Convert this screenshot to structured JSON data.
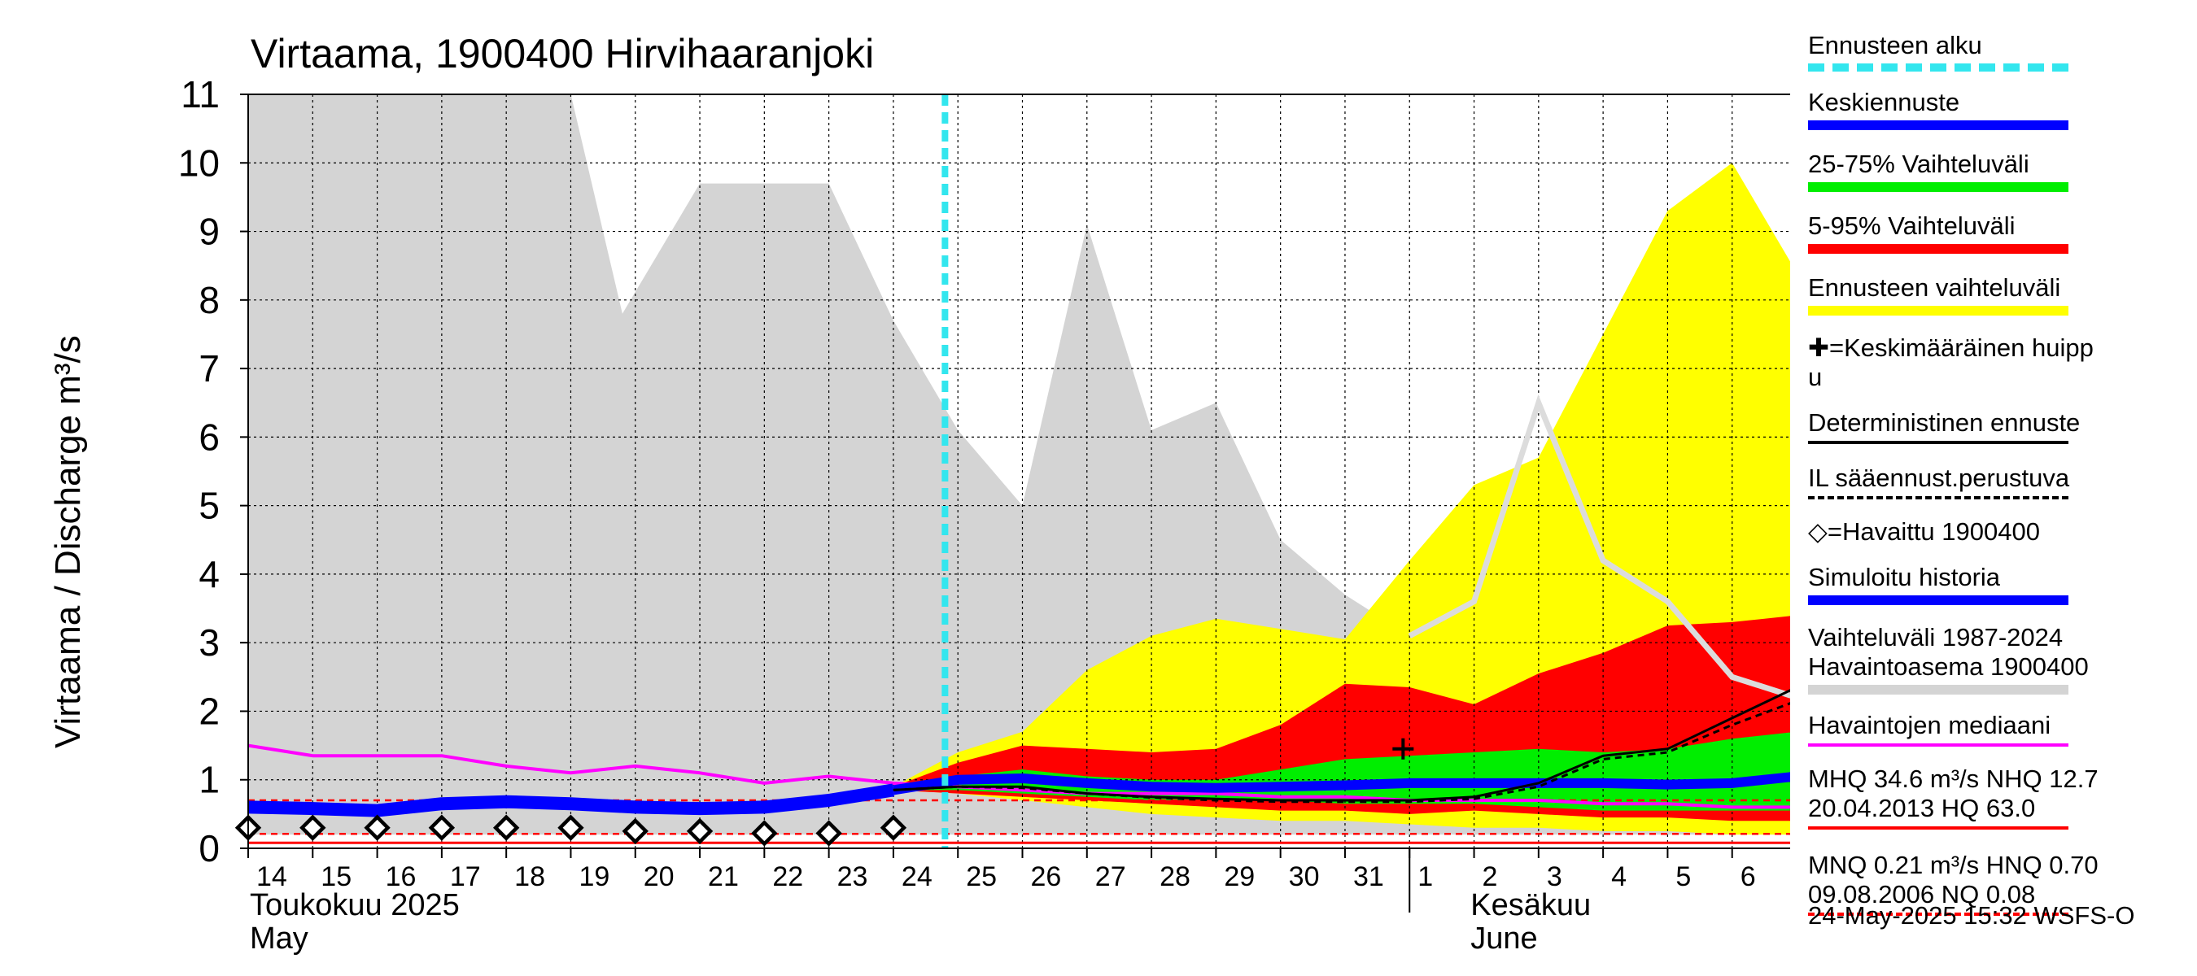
{
  "chart_data": {
    "type": "area",
    "title": "Virtaama, 1900400 Hirvihaaranjoki",
    "ylabel": "Virtaama / Discharge   m³/s",
    "ylim": [
      0,
      11
    ],
    "yticks": [
      0,
      1,
      2,
      3,
      4,
      5,
      6,
      7,
      8,
      9,
      10,
      11
    ],
    "x_start": "2025-05-14",
    "x_end": "2025-06-07",
    "x_tick_labels": [
      "14",
      "15",
      "16",
      "17",
      "18",
      "19",
      "20",
      "21",
      "22",
      "23",
      "24",
      "25",
      "26",
      "27",
      "28",
      "29",
      "30",
      "31",
      "1",
      "2",
      "3",
      "4",
      "5",
      "6"
    ],
    "month_labels": [
      {
        "fi": "Toukokuu  2025",
        "en": "May"
      },
      {
        "fi": "Kesäkuu",
        "en": "June"
      }
    ],
    "forecast_start_day": 10.8,
    "historical_range": {
      "name": "Vaihteluväli 1987-2024 Havaintoasema 1900400",
      "x": [
        0,
        1,
        2,
        3,
        4,
        5,
        5.8,
        7,
        8,
        9,
        10,
        11,
        12,
        13,
        14,
        15,
        16,
        17,
        18,
        19,
        20,
        21,
        22,
        23,
        24
      ],
      "upper": [
        11,
        11,
        11,
        11,
        11,
        11,
        7.8,
        9.7,
        9.7,
        9.7,
        7.7,
        6.1,
        5.0,
        9.1,
        6.1,
        6.5,
        4.5,
        3.7,
        3.1,
        3.5,
        3.3,
        3.0,
        2.8,
        2.6,
        2.3
      ],
      "lower": [
        0.2,
        0.2,
        0.2,
        0.2,
        0.2,
        0.2,
        0.2,
        0.2,
        0.2,
        0.2,
        0.2,
        0.2,
        0.2,
        0.2,
        0.2,
        0.2,
        0.2,
        0.2,
        0.2,
        0.2,
        0.2,
        0.2,
        0.2,
        0.2,
        0.2
      ]
    },
    "max_history_line": {
      "x": [
        18,
        19,
        20,
        21,
        22,
        23,
        24
      ],
      "y": [
        3.1,
        3.6,
        6.5,
        4.2,
        3.6,
        2.5,
        2.2
      ]
    },
    "forecast_range": {
      "name": "Ennusteen vaihteluväli",
      "x": [
        10,
        11,
        12,
        13,
        14,
        15,
        16,
        17,
        18,
        19,
        20,
        21,
        22,
        23,
        24
      ],
      "upper": [
        0.9,
        1.4,
        1.7,
        2.6,
        3.1,
        3.35,
        3.2,
        3.05,
        4.2,
        5.3,
        5.7,
        7.5,
        9.3,
        10.0,
        8.4
      ],
      "lower": [
        0.85,
        0.8,
        0.7,
        0.6,
        0.5,
        0.45,
        0.4,
        0.4,
        0.35,
        0.3,
        0.3,
        0.25,
        0.25,
        0.2,
        0.2
      ]
    },
    "range_5_95": {
      "name": "5-95% Vaihteluväli",
      "x": [
        10,
        11,
        12,
        13,
        14,
        15,
        16,
        17,
        18,
        19,
        20,
        21,
        22,
        23,
        24
      ],
      "upper": [
        0.9,
        1.25,
        1.5,
        1.45,
        1.4,
        1.45,
        1.8,
        2.4,
        2.35,
        2.1,
        2.55,
        2.85,
        3.25,
        3.3,
        3.4
      ],
      "lower": [
        0.85,
        0.8,
        0.75,
        0.7,
        0.65,
        0.6,
        0.55,
        0.55,
        0.5,
        0.55,
        0.5,
        0.45,
        0.45,
        0.4,
        0.4
      ]
    },
    "range_25_75": {
      "name": "25-75% Vaihteluväli",
      "x": [
        10,
        11,
        12,
        13,
        14,
        15,
        16,
        17,
        18,
        19,
        20,
        21,
        22,
        23,
        24
      ],
      "upper": [
        0.88,
        1.05,
        1.15,
        1.05,
        1.0,
        1.0,
        1.15,
        1.3,
        1.35,
        1.4,
        1.45,
        1.4,
        1.45,
        1.6,
        1.7
      ],
      "lower": [
        0.85,
        0.85,
        0.8,
        0.75,
        0.7,
        0.7,
        0.7,
        0.65,
        0.65,
        0.65,
        0.6,
        0.55,
        0.55,
        0.55,
        0.55
      ]
    },
    "series": [
      {
        "name": "Keskiennuste",
        "x": [
          10,
          11,
          12,
          13,
          14,
          15,
          16,
          17,
          18,
          19,
          20,
          21,
          22,
          23,
          24
        ],
        "y": [
          0.85,
          1.0,
          1.02,
          0.95,
          0.9,
          0.88,
          0.9,
          0.92,
          0.95,
          0.95,
          0.95,
          0.95,
          0.93,
          0.95,
          1.05
        ]
      },
      {
        "name": "Simuloitu historia",
        "x": [
          0,
          1,
          2,
          3,
          4,
          5,
          6,
          7,
          8,
          9,
          10
        ],
        "y": [
          0.6,
          0.58,
          0.55,
          0.65,
          0.68,
          0.65,
          0.6,
          0.58,
          0.6,
          0.7,
          0.85
        ]
      },
      {
        "name": "Deterministinen ennuste",
        "x": [
          10,
          11,
          12,
          13,
          14,
          15,
          16,
          17,
          18,
          19,
          20,
          21,
          22,
          23,
          24
        ],
        "y": [
          0.85,
          0.9,
          0.9,
          0.8,
          0.75,
          0.72,
          0.7,
          0.7,
          0.7,
          0.75,
          0.95,
          1.35,
          1.45,
          1.9,
          2.35
        ]
      },
      {
        "name": "IL sääennust.perustuva",
        "x": [
          10,
          11,
          12,
          13,
          14,
          15,
          16,
          17,
          18,
          19,
          20,
          21,
          22,
          23,
          24
        ],
        "y": [
          0.85,
          0.9,
          0.88,
          0.8,
          0.74,
          0.7,
          0.68,
          0.68,
          0.68,
          0.72,
          0.9,
          1.3,
          1.4,
          1.8,
          2.15
        ]
      },
      {
        "name": "Havaintojen mediaani",
        "x": [
          0,
          1,
          2,
          3,
          4,
          5,
          6,
          7,
          8,
          9,
          10,
          11,
          12,
          13,
          14,
          15,
          16,
          17,
          18,
          19,
          20,
          21,
          22,
          23,
          24
        ],
        "y": [
          1.5,
          1.35,
          1.35,
          1.35,
          1.2,
          1.1,
          1.2,
          1.1,
          0.95,
          1.05,
          0.95,
          0.9,
          0.85,
          0.8,
          0.8,
          0.8,
          0.75,
          0.75,
          0.7,
          0.7,
          0.7,
          0.65,
          0.65,
          0.6,
          0.6
        ]
      }
    ],
    "observed": {
      "name": "Havaittu 1900400",
      "x": [
        0,
        1,
        2,
        3,
        4,
        5,
        6,
        7,
        8,
        9,
        10
      ],
      "y": [
        0.3,
        0.3,
        0.3,
        0.3,
        0.3,
        0.3,
        0.25,
        0.25,
        0.22,
        0.22,
        0.3
      ]
    },
    "mean_peak": {
      "x": 17.9,
      "y": 1.45
    },
    "ref_lines": {
      "mhq": 34.6,
      "nhq": 12.7,
      "hq": 63.0,
      "mnq": 0.21,
      "hnq": 0.7,
      "nq": 0.08,
      "hnq_y": 0.7,
      "mnq_y": 0.21,
      "nq_y": 0.08
    }
  },
  "legend": [
    {
      "text": "Ennusteen alku",
      "style": "dashcyan",
      "color": "#33e6ee"
    },
    {
      "text": "Keskiennuste",
      "style": "thick",
      "color": "#0000ff"
    },
    {
      "text": "25-75% Vaihteluväli",
      "style": "thick",
      "color": "#00ee00"
    },
    {
      "text": "5-95% Vaihteluväli",
      "style": "thick",
      "color": "#ff0000"
    },
    {
      "text": "Ennusteen vaihteluväli",
      "style": "thick",
      "color": "#ffff00"
    },
    {
      "text": "✚=Keskimääräinen huipp\nu",
      "style": "none",
      "color": "#000000"
    },
    {
      "text": "Deterministinen ennuste",
      "style": "thin",
      "color": "#000000"
    },
    {
      "text": "IL sääennust.perustuva",
      "style": "dash",
      "color": "#000000"
    },
    {
      "text": "◇=Havaittu 1900400",
      "style": "none",
      "color": "#000000"
    },
    {
      "text": "Simuloitu historia",
      "style": "thick",
      "color": "#0000ff"
    },
    {
      "text": "Vaihteluväli 1987-2024\n Havaintoasema 1900400",
      "style": "thick",
      "color": "#d4d4d4"
    },
    {
      "text": "Havaintojen mediaani",
      "style": "thin",
      "color": "#ff00ff"
    },
    {
      "text": "MHQ 34.6 m³/s NHQ 12.7\n20.04.2013 HQ 63.0",
      "style": "thinred",
      "color": "#ff0000"
    },
    {
      "text": "MNQ 0.21 m³/s HNQ 0.70\n09.08.2006 NQ 0.08",
      "style": "dashred",
      "color": "#ff0000"
    }
  ],
  "footer": "24-May-2025 15:32 WSFS-O",
  "colors": {
    "grid": "#000000",
    "history": "#d4d4d4",
    "forecast": "#ffff00",
    "p5_95": "#ff0000",
    "p25_75": "#00ee00",
    "mean": "#0000ff",
    "median": "#ff00ff",
    "forecast_start": "#33e6ee"
  }
}
